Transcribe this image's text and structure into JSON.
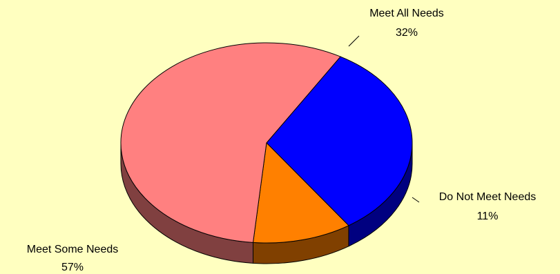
{
  "chart_data": {
    "type": "pie",
    "title": "",
    "background": "#FFFFC0",
    "slices": [
      {
        "label": "Meet All Needs",
        "value": 32,
        "percent_label": "32%",
        "color": "#0000FF"
      },
      {
        "label": "Do Not Meet Needs",
        "value": 11,
        "percent_label": "11%",
        "color": "#FF8000"
      },
      {
        "label": "Meet Some Needs",
        "value": 57,
        "percent_label": "57%",
        "color": "#FF8080"
      }
    ],
    "style": "3d"
  }
}
